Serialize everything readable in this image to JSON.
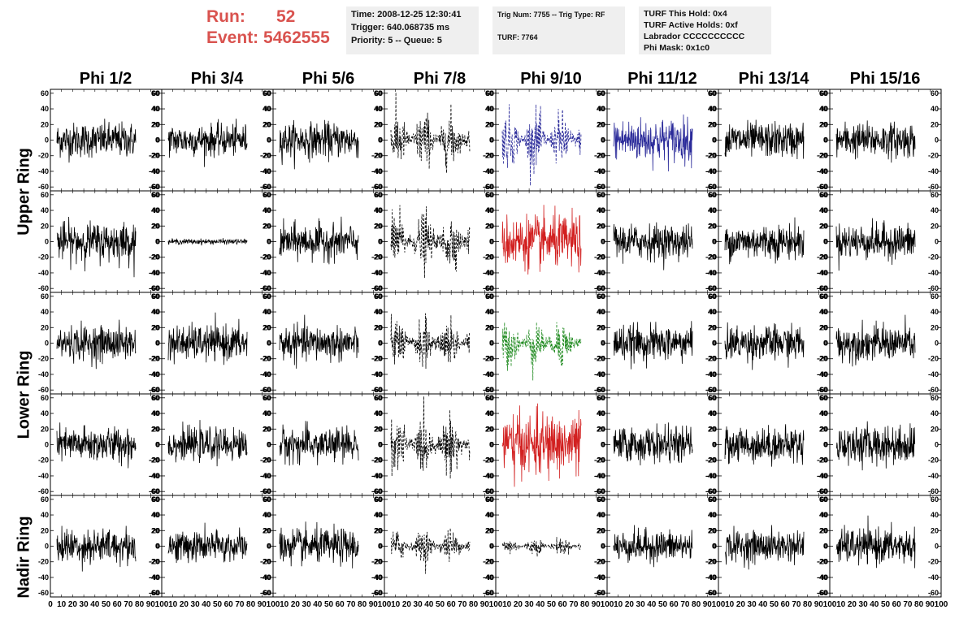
{
  "header": {
    "run_label": "Run:",
    "run_value": "52",
    "event_label": "Event:",
    "event_value": "5462555",
    "time": "Time: 2008-12-25 12:30:41",
    "trigger": "Trigger: 640.068735 ms",
    "priority": "Priority: 5 -- Queue: 5",
    "trig_num": "Trig Num: 7755 -- Trig Type: RF",
    "turf": "TURF: 7764",
    "turf_hold": "TURF This Hold: 0x4",
    "turf_active": "TURF Active Holds: 0xf",
    "labrador": "Labrador CCCCCCCCCC",
    "phi_mask": "Phi Mask: 0x1c0"
  },
  "colors": {
    "run_text": "#d9534f",
    "normal": "#000000",
    "blue": "#2b2b9a",
    "red": "#d22020",
    "green": "#1f8a1f"
  },
  "chart_data": {
    "type": "line",
    "columns": [
      "Phi 1/2",
      "Phi 3/4",
      "Phi 5/6",
      "Phi 7/8",
      "Phi 9/10",
      "Phi 11/12",
      "Phi 13/14",
      "Phi 15/16"
    ],
    "rows": [
      "Upper Ring",
      "Lower Ring",
      "Nadir Ring"
    ],
    "xlim": [
      0,
      100
    ],
    "ylim": [
      -65,
      65
    ],
    "x_ticks": [
      0,
      10,
      20,
      30,
      40,
      50,
      60,
      70,
      80,
      90,
      100
    ],
    "y_ticks": [
      -60,
      -40,
      -20,
      0,
      20,
      40,
      60
    ],
    "panels_per_column": 5,
    "trace_colors": [
      [
        "normal",
        "normal",
        "normal",
        "dashed",
        "blue-dashed",
        "blue",
        "normal",
        "normal"
      ],
      [
        "normal",
        "normal",
        "normal",
        "dashed",
        "red",
        "normal",
        "normal",
        "normal"
      ],
      [
        "normal",
        "normal",
        "normal",
        "dashed",
        "green-dashed",
        "normal",
        "normal",
        "normal"
      ],
      [
        "normal",
        "normal",
        "normal",
        "dashed",
        "red",
        "normal",
        "normal",
        "normal"
      ],
      [
        "normal",
        "normal",
        "normal",
        "dashed",
        "dashed",
        "normal",
        "normal",
        "normal"
      ]
    ],
    "amplitudes": [
      [
        20,
        18,
        20,
        35,
        35,
        25,
        20,
        20
      ],
      [
        22,
        3,
        20,
        35,
        30,
        20,
        20,
        20
      ],
      [
        20,
        20,
        20,
        30,
        30,
        20,
        20,
        20
      ],
      [
        20,
        18,
        20,
        35,
        35,
        20,
        20,
        22
      ],
      [
        20,
        18,
        20,
        20,
        10,
        18,
        18,
        20
      ]
    ]
  }
}
